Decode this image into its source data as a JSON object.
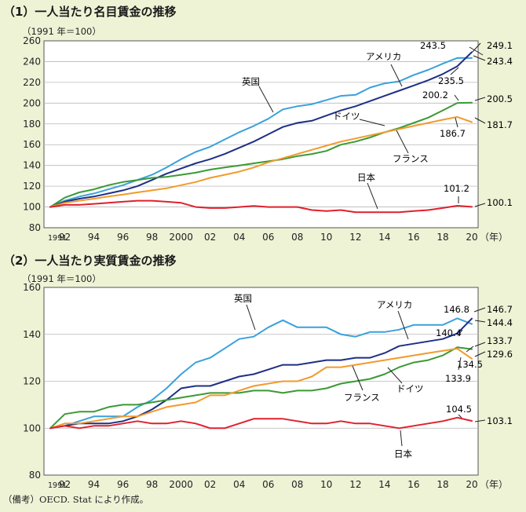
{
  "note": "（備考）OECD. Stat により作成。",
  "chart_data": [
    {
      "type": "line",
      "title": "（1）一人当たり名目賃金の推移",
      "unit_label": "（1991 年＝100）",
      "xlabel": "（年）",
      "ylim": [
        80,
        260
      ],
      "yticks": [
        80,
        100,
        120,
        140,
        160,
        180,
        200,
        220,
        240,
        260
      ],
      "x_years": [
        1991,
        1992,
        1993,
        1994,
        1995,
        1996,
        1997,
        1998,
        1999,
        2000,
        2001,
        2002,
        2003,
        2004,
        2005,
        2006,
        2007,
        2008,
        2009,
        2010,
        2011,
        2012,
        2013,
        2014,
        2015,
        2016,
        2017,
        2018,
        2019,
        2020
      ],
      "x_tick_labels": [
        "1991",
        "92",
        "94",
        "96",
        "98",
        "2000",
        "02",
        "04",
        "06",
        "08",
        "10",
        "12",
        "14",
        "16",
        "18",
        "20"
      ],
      "x_tick_years": [
        1991,
        1992,
        1994,
        1996,
        1998,
        2000,
        2002,
        2004,
        2006,
        2008,
        2010,
        2012,
        2014,
        2016,
        2018,
        2020
      ],
      "series": [
        {
          "name": "英国",
          "color": "#3aa1db",
          "values": [
            100,
            106,
            110,
            113,
            117,
            121,
            126,
            131,
            138,
            146,
            153,
            158,
            165,
            172,
            178,
            185,
            194,
            197,
            199,
            203,
            207,
            208,
            215,
            219,
            221,
            227,
            232,
            238,
            243.5,
            243.4
          ]
        },
        {
          "name": "アメリカ",
          "color": "#1e2f86",
          "values": [
            100,
            105,
            108,
            110,
            113,
            116,
            120,
            126,
            132,
            137,
            142,
            146,
            151,
            157,
            163,
            170,
            177,
            181,
            183,
            188,
            193,
            197,
            202,
            207,
            212,
            217,
            222,
            228,
            235.5,
            249.1
          ]
        },
        {
          "name": "ドイツ",
          "color": "#3a9a35",
          "values": [
            100,
            109,
            114,
            117,
            121,
            124,
            126,
            128,
            129,
            131,
            133,
            136,
            138,
            140,
            142,
            144,
            146,
            149,
            151,
            154,
            160,
            163,
            167,
            172,
            176,
            181,
            186,
            193,
            200.2,
            200.5
          ]
        },
        {
          "name": "フランス",
          "color": "#f29a2e",
          "values": [
            100,
            104,
            106,
            108,
            110,
            112,
            114,
            116,
            118,
            121,
            124,
            128,
            131,
            134,
            138,
            143,
            147,
            151,
            155,
            159,
            163,
            166,
            169,
            172,
            175,
            178,
            181,
            184,
            186.7,
            181.7
          ]
        },
        {
          "name": "日本",
          "color": "#e0202d",
          "values": [
            100,
            102,
            102,
            103,
            104,
            105,
            106,
            106,
            105,
            104,
            100,
            99,
            99,
            100,
            101,
            100,
            100,
            100,
            97,
            96,
            97,
            95,
            95,
            95,
            95,
            96,
            97,
            99,
            101.2,
            100.1
          ]
        }
      ],
      "annotations": {
        "series_labels": [
          "英国",
          "アメリカ",
          "ドイツ",
          "フランス",
          "日本"
        ],
        "value_labels": [
          "243.5",
          "249.1",
          "243.4",
          "235.5",
          "200.2",
          "200.5",
          "186.7",
          "181.7",
          "101.2",
          "100.1"
        ]
      }
    },
    {
      "type": "line",
      "title": "（2）一人当たり実質賃金の推移",
      "unit_label": "（1991 年＝100）",
      "xlabel": "（年）",
      "ylim": [
        80,
        160
      ],
      "yticks": [
        80,
        100,
        120,
        140,
        160
      ],
      "x_years": [
        1991,
        1992,
        1993,
        1994,
        1995,
        1996,
        1997,
        1998,
        1999,
        2000,
        2001,
        2002,
        2003,
        2004,
        2005,
        2006,
        2007,
        2008,
        2009,
        2010,
        2011,
        2012,
        2013,
        2014,
        2015,
        2016,
        2017,
        2018,
        2019,
        2020
      ],
      "x_tick_labels": [
        "1991",
        "92",
        "94",
        "96",
        "98",
        "2000",
        "02",
        "04",
        "06",
        "08",
        "10",
        "12",
        "14",
        "16",
        "18",
        "20"
      ],
      "x_tick_years": [
        1991,
        1992,
        1994,
        1996,
        1998,
        2000,
        2002,
        2004,
        2006,
        2008,
        2010,
        2012,
        2014,
        2016,
        2018,
        2020
      ],
      "series": [
        {
          "name": "英国",
          "color": "#3aa1db",
          "values": [
            100,
            101,
            103,
            105,
            105,
            105,
            109,
            112,
            117,
            123,
            128,
            130,
            134,
            138,
            139,
            143,
            146,
            143,
            143,
            143,
            140,
            139,
            141,
            141,
            142,
            144,
            144,
            144,
            146.8,
            144.4
          ]
        },
        {
          "name": "アメリカ",
          "color": "#1e2f86",
          "values": [
            100,
            101,
            102,
            102,
            102,
            103,
            105,
            108,
            112,
            117,
            118,
            118,
            120,
            122,
            123,
            125,
            127,
            127,
            128,
            129,
            129,
            130,
            130,
            132,
            135,
            136,
            137,
            138,
            140.4,
            146.7
          ]
        },
        {
          "name": "ドイツ",
          "color": "#3a9a35",
          "values": [
            100,
            106,
            107,
            107,
            109,
            110,
            110,
            111,
            112,
            113,
            114,
            115,
            115,
            115,
            116,
            116,
            115,
            116,
            116,
            117,
            119,
            120,
            121,
            123,
            126,
            128,
            129,
            131,
            134.5,
            133.7
          ]
        },
        {
          "name": "フランス",
          "color": "#f29a2e",
          "values": [
            100,
            102,
            102,
            103,
            104,
            105,
            105,
            107,
            109,
            110,
            111,
            114,
            114,
            116,
            118,
            119,
            120,
            120,
            122,
            126,
            126,
            127,
            128,
            129,
            130,
            131,
            132,
            133,
            133.9,
            129.6
          ]
        },
        {
          "name": "日本",
          "color": "#e0202d",
          "values": [
            100,
            101,
            100,
            101,
            101,
            102,
            103,
            102,
            102,
            103,
            102,
            100,
            100,
            102,
            104,
            104,
            104,
            103,
            102,
            102,
            103,
            102,
            102,
            101,
            100,
            101,
            102,
            103,
            104.5,
            103.1
          ]
        }
      ],
      "annotations": {
        "series_labels": [
          "英国",
          "アメリカ",
          "ドイツ",
          "フランス",
          "日本"
        ],
        "value_labels": [
          "146.8",
          "146.7",
          "144.4",
          "140.4",
          "134.5",
          "133.7",
          "133.9",
          "129.6",
          "104.5",
          "103.1"
        ]
      }
    }
  ]
}
